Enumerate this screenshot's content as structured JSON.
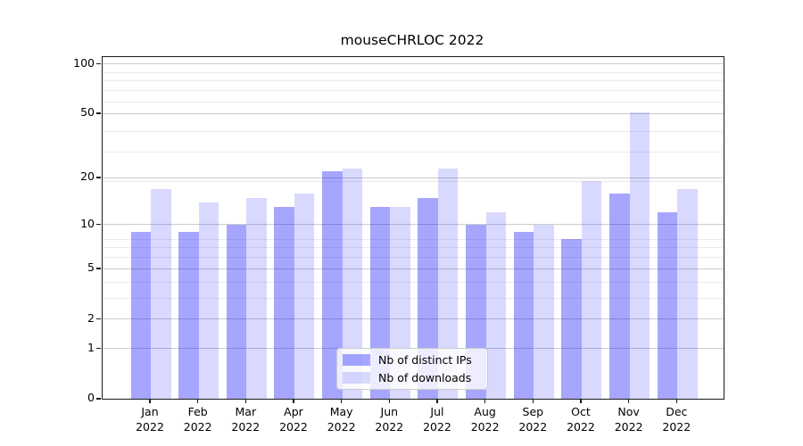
{
  "chart_data": {
    "type": "bar",
    "title": "mouseCHRLOC 2022",
    "year_label": "2022",
    "categories": [
      "Jan",
      "Feb",
      "Mar",
      "Apr",
      "May",
      "Jun",
      "Jul",
      "Aug",
      "Sep",
      "Oct",
      "Nov",
      "Dec"
    ],
    "series": [
      {
        "name": "Nb of distinct IPs",
        "color": "rgba(0,0,255,0.35)",
        "values": [
          9,
          9,
          10,
          13,
          22,
          13,
          15,
          10,
          9,
          8,
          16,
          12
        ]
      },
      {
        "name": "Nb of downloads",
        "color": "rgba(0,0,255,0.15)",
        "values": [
          17,
          14,
          15,
          16,
          23,
          13,
          23,
          12,
          10,
          19,
          51,
          17
        ]
      }
    ],
    "yscale": "log1p",
    "ylim": [
      0,
      110
    ],
    "y_tick_values": [
      100,
      50,
      20,
      10,
      5,
      2,
      1,
      0
    ],
    "y_tick_labels": [
      "100",
      "50",
      "20",
      "10",
      "5",
      "2",
      "1",
      "0"
    ],
    "y_minor_gridline_values": [
      3,
      4,
      6,
      7,
      8,
      19,
      29,
      39,
      59,
      69,
      79,
      89
    ],
    "grid": "horizontal",
    "legend_position": "lower center",
    "xlabel": "",
    "ylabel": ""
  },
  "colors": {
    "bar_distinct_ips": "rgba(0,0,255,0.35)",
    "bar_downloads": "rgba(0,0,255,0.15)",
    "grid_major": "#cccccc",
    "grid_minor": "#ebebeb",
    "spine": "#1a1a1a",
    "text": "#000000",
    "legend_border": "#cccccc"
  }
}
